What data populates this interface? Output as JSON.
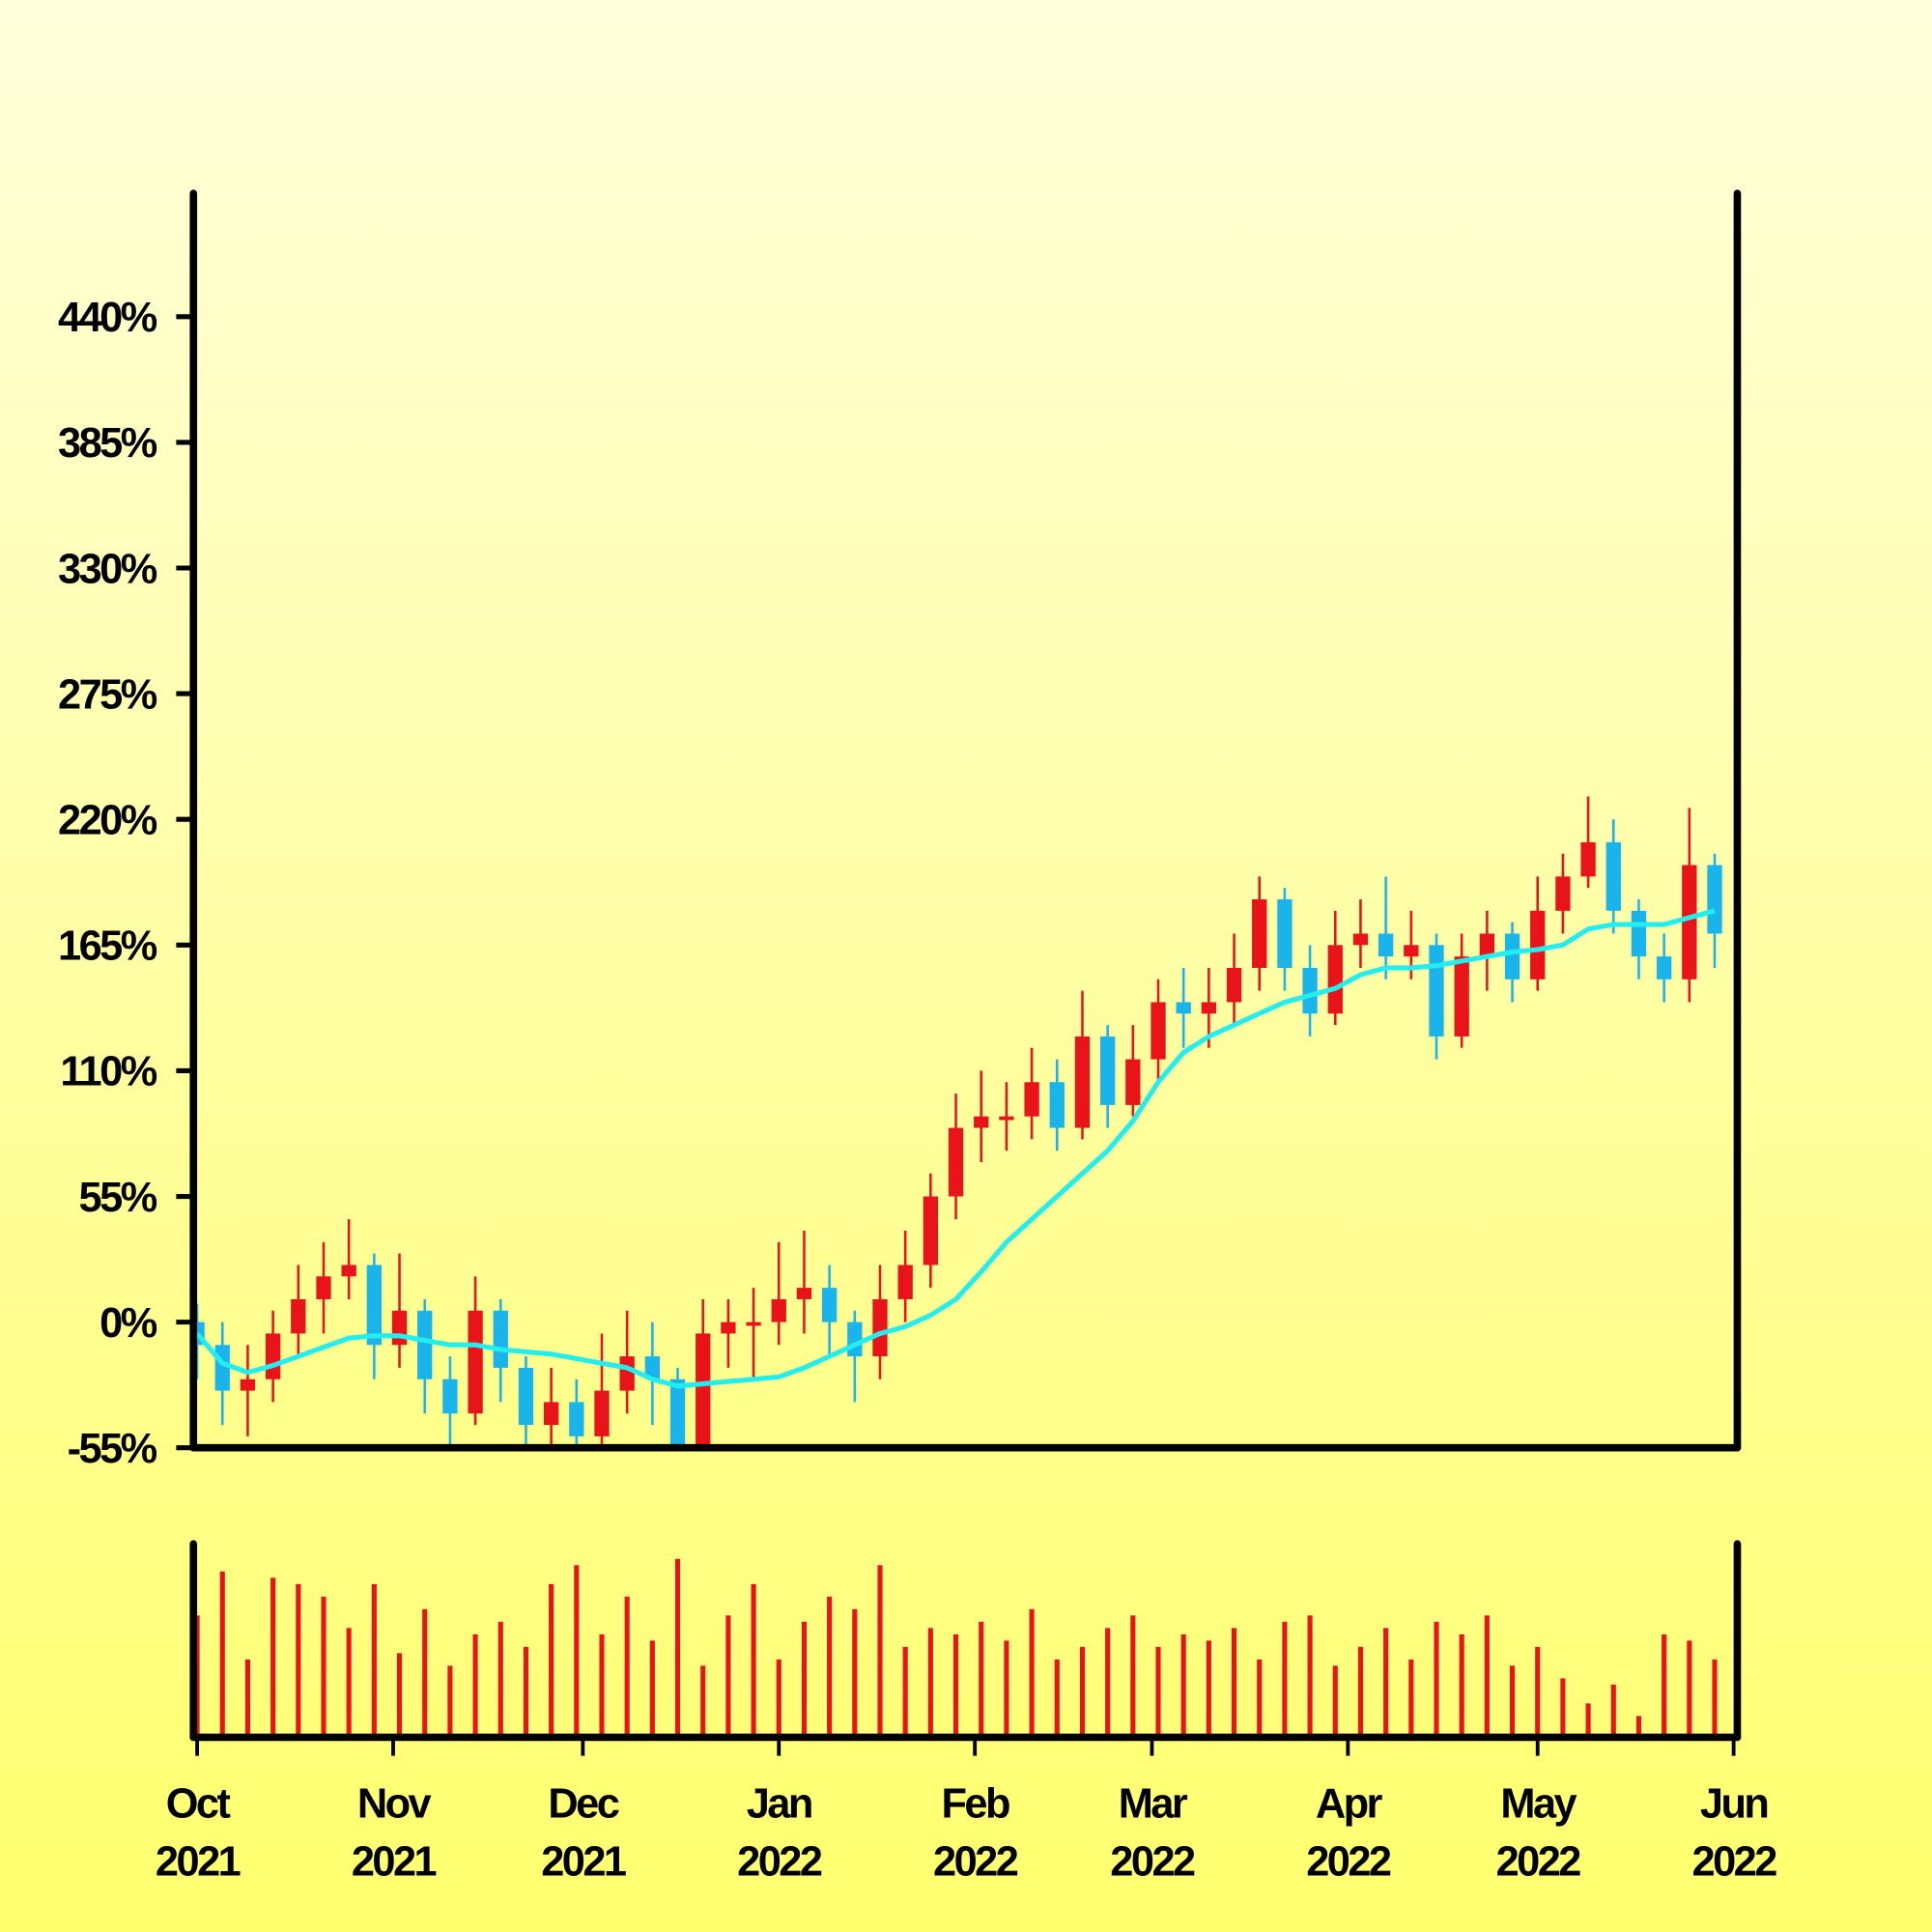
{
  "chart_data": {
    "type": "candlestick",
    "up_color": "#e8141a",
    "down_color": "#1ab4ec",
    "ma_color": "#22eef0",
    "volume_color": "#e8141a",
    "x": [
      "2021-10-01",
      "2021-10-05",
      "2021-10-09",
      "2021-10-13",
      "2021-10-17",
      "2021-10-21",
      "2021-10-25",
      "2021-10-29",
      "2021-11-02",
      "2021-11-06",
      "2021-11-10",
      "2021-11-14",
      "2021-11-18",
      "2021-11-22",
      "2021-11-26",
      "2021-11-30",
      "2021-12-04",
      "2021-12-08",
      "2021-12-12",
      "2021-12-16",
      "2021-12-20",
      "2021-12-24",
      "2021-12-28",
      "2022-01-01",
      "2022-01-05",
      "2022-01-09",
      "2022-01-13",
      "2022-01-17",
      "2022-01-21",
      "2022-01-25",
      "2022-01-29",
      "2022-02-02",
      "2022-02-06",
      "2022-02-10",
      "2022-02-14",
      "2022-02-18",
      "2022-02-22",
      "2022-02-26",
      "2022-03-02",
      "2022-03-06",
      "2022-03-10",
      "2022-03-14",
      "2022-03-18",
      "2022-03-22",
      "2022-03-26",
      "2022-03-30",
      "2022-04-03",
      "2022-04-07",
      "2022-04-11",
      "2022-04-15",
      "2022-04-19",
      "2022-04-23",
      "2022-04-27",
      "2022-05-01",
      "2022-05-05",
      "2022-05-09",
      "2022-05-13",
      "2022-05-17",
      "2022-05-21",
      "2022-05-25",
      "2022-05-29"
    ],
    "open": [
      0,
      -10,
      -30,
      -25,
      -5,
      10,
      20,
      25,
      -10,
      5,
      -25,
      -40,
      5,
      -20,
      -45,
      -35,
      -50,
      -30,
      -15,
      -25,
      -55,
      -5,
      0,
      0,
      10,
      15,
      0,
      -15,
      10,
      25,
      55,
      85,
      90,
      90,
      105,
      85,
      125,
      95,
      115,
      140,
      135,
      140,
      155,
      185,
      155,
      135,
      165,
      170,
      160,
      165,
      125,
      160,
      170,
      150,
      180,
      195,
      210,
      180,
      160,
      150,
      200
    ],
    "high": [
      8,
      0,
      -10,
      5,
      25,
      35,
      45,
      30,
      30,
      10,
      -15,
      20,
      10,
      -15,
      -20,
      -25,
      -5,
      5,
      0,
      -20,
      10,
      10,
      15,
      35,
      40,
      25,
      5,
      25,
      40,
      65,
      100,
      110,
      105,
      120,
      115,
      145,
      130,
      130,
      150,
      155,
      155,
      170,
      195,
      190,
      165,
      180,
      185,
      195,
      180,
      170,
      170,
      180,
      175,
      195,
      205,
      230,
      220,
      185,
      170,
      225,
      205
    ],
    "low": [
      -25,
      -45,
      -50,
      -35,
      -15,
      -5,
      10,
      -25,
      -20,
      -40,
      -55,
      -45,
      -35,
      -55,
      -55,
      -55,
      -55,
      -40,
      -45,
      -55,
      -55,
      -20,
      -25,
      -10,
      -5,
      -15,
      -35,
      -25,
      0,
      15,
      45,
      70,
      75,
      80,
      75,
      80,
      85,
      90,
      105,
      120,
      120,
      130,
      145,
      145,
      125,
      130,
      155,
      150,
      150,
      115,
      120,
      145,
      140,
      145,
      170,
      190,
      170,
      150,
      140,
      140,
      155
    ],
    "close": [
      -10,
      -30,
      -25,
      -5,
      10,
      20,
      25,
      -10,
      5,
      -25,
      -40,
      5,
      -20,
      -45,
      -35,
      -50,
      -30,
      -15,
      -25,
      -55,
      -5,
      0,
      0,
      10,
      15,
      0,
      -15,
      10,
      25,
      55,
      85,
      90,
      90,
      105,
      85,
      125,
      95,
      115,
      140,
      135,
      140,
      155,
      185,
      155,
      135,
      165,
      170,
      160,
      165,
      125,
      160,
      170,
      150,
      180,
      195,
      210,
      180,
      160,
      150,
      200,
      170
    ],
    "ma": [
      -5,
      -18,
      -22,
      -19,
      -15,
      -11,
      -7,
      -6,
      -6,
      -8,
      -10,
      -10,
      -12,
      -13,
      -14,
      -16,
      -18,
      -20,
      -25,
      -28,
      -27,
      -26,
      -25,
      -24,
      -20,
      -15,
      -10,
      -5,
      -2,
      3,
      10,
      22,
      35,
      45,
      55,
      65,
      75,
      88,
      105,
      118,
      125,
      130,
      135,
      140,
      143,
      146,
      152,
      155,
      155,
      156,
      158,
      160,
      162,
      163,
      165,
      172,
      174,
      174,
      174,
      177,
      180
    ],
    "volume": [
      95,
      130,
      60,
      125,
      120,
      110,
      85,
      120,
      65,
      100,
      55,
      80,
      90,
      70,
      120,
      135,
      80,
      110,
      75,
      140,
      55,
      95,
      120,
      60,
      90,
      110,
      100,
      135,
      70,
      85,
      80,
      90,
      75,
      100,
      60,
      70,
      85,
      95,
      70,
      80,
      75,
      85,
      60,
      90,
      95,
      55,
      70,
      85,
      60,
      90,
      80,
      95,
      55,
      70,
      45,
      25,
      40,
      15,
      80,
      75,
      60
    ],
    "volume_ylim": [
      0,
      150
    ],
    "xlim": [
      "2021-10",
      "2022-06"
    ],
    "xticks": [
      {
        "value": "2021-10",
        "label": "Oct 2021"
      },
      {
        "value": "2021-11",
        "label": "Nov 2021"
      },
      {
        "value": "2021-12",
        "label": "Dec 2021"
      },
      {
        "value": "2022-01",
        "label": "Jan 2022"
      },
      {
        "value": "2022-02",
        "label": "Feb 2022"
      },
      {
        "value": "2022-03",
        "label": "Mar 2022"
      },
      {
        "value": "2022-04",
        "label": "Apr 2022"
      },
      {
        "value": "2022-05",
        "label": "May 2022"
      },
      {
        "value": "2022-06",
        "label": "Jun 2022"
      }
    ],
    "ylim": [
      -55,
      495
    ],
    "yticks": [
      {
        "value": -55,
        "label": "-55%"
      },
      {
        "value": 0,
        "label": "0%"
      },
      {
        "value": 55,
        "label": "55%"
      },
      {
        "value": 110,
        "label": "110%"
      },
      {
        "value": 165,
        "label": "165%"
      },
      {
        "value": 220,
        "label": "220%"
      },
      {
        "value": 275,
        "label": "275%"
      },
      {
        "value": 330,
        "label": "330%"
      },
      {
        "value": 385,
        "label": "385%"
      },
      {
        "value": 440,
        "label": "440%"
      }
    ]
  }
}
